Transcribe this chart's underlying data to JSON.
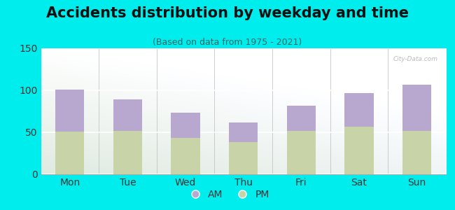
{
  "title": "Accidents distribution by weekday and time",
  "subtitle": "(Based on data from 1975 - 2021)",
  "categories": [
    "Mon",
    "Tue",
    "Wed",
    "Thu",
    "Fri",
    "Sat",
    "Sun"
  ],
  "pm_values": [
    51,
    52,
    43,
    38,
    52,
    57,
    52
  ],
  "am_values": [
    50,
    37,
    30,
    24,
    30,
    40,
    55
  ],
  "am_color": "#b8a8d0",
  "pm_color": "#c8d4a8",
  "ylim": [
    0,
    150
  ],
  "yticks": [
    0,
    50,
    100,
    150
  ],
  "background_color": "#00eded",
  "bar_width": 0.5,
  "title_fontsize": 15,
  "subtitle_fontsize": 9,
  "tick_fontsize": 10,
  "legend_fontsize": 10,
  "title_color": "#111111",
  "subtitle_color": "#336666",
  "tick_color": "#333333"
}
